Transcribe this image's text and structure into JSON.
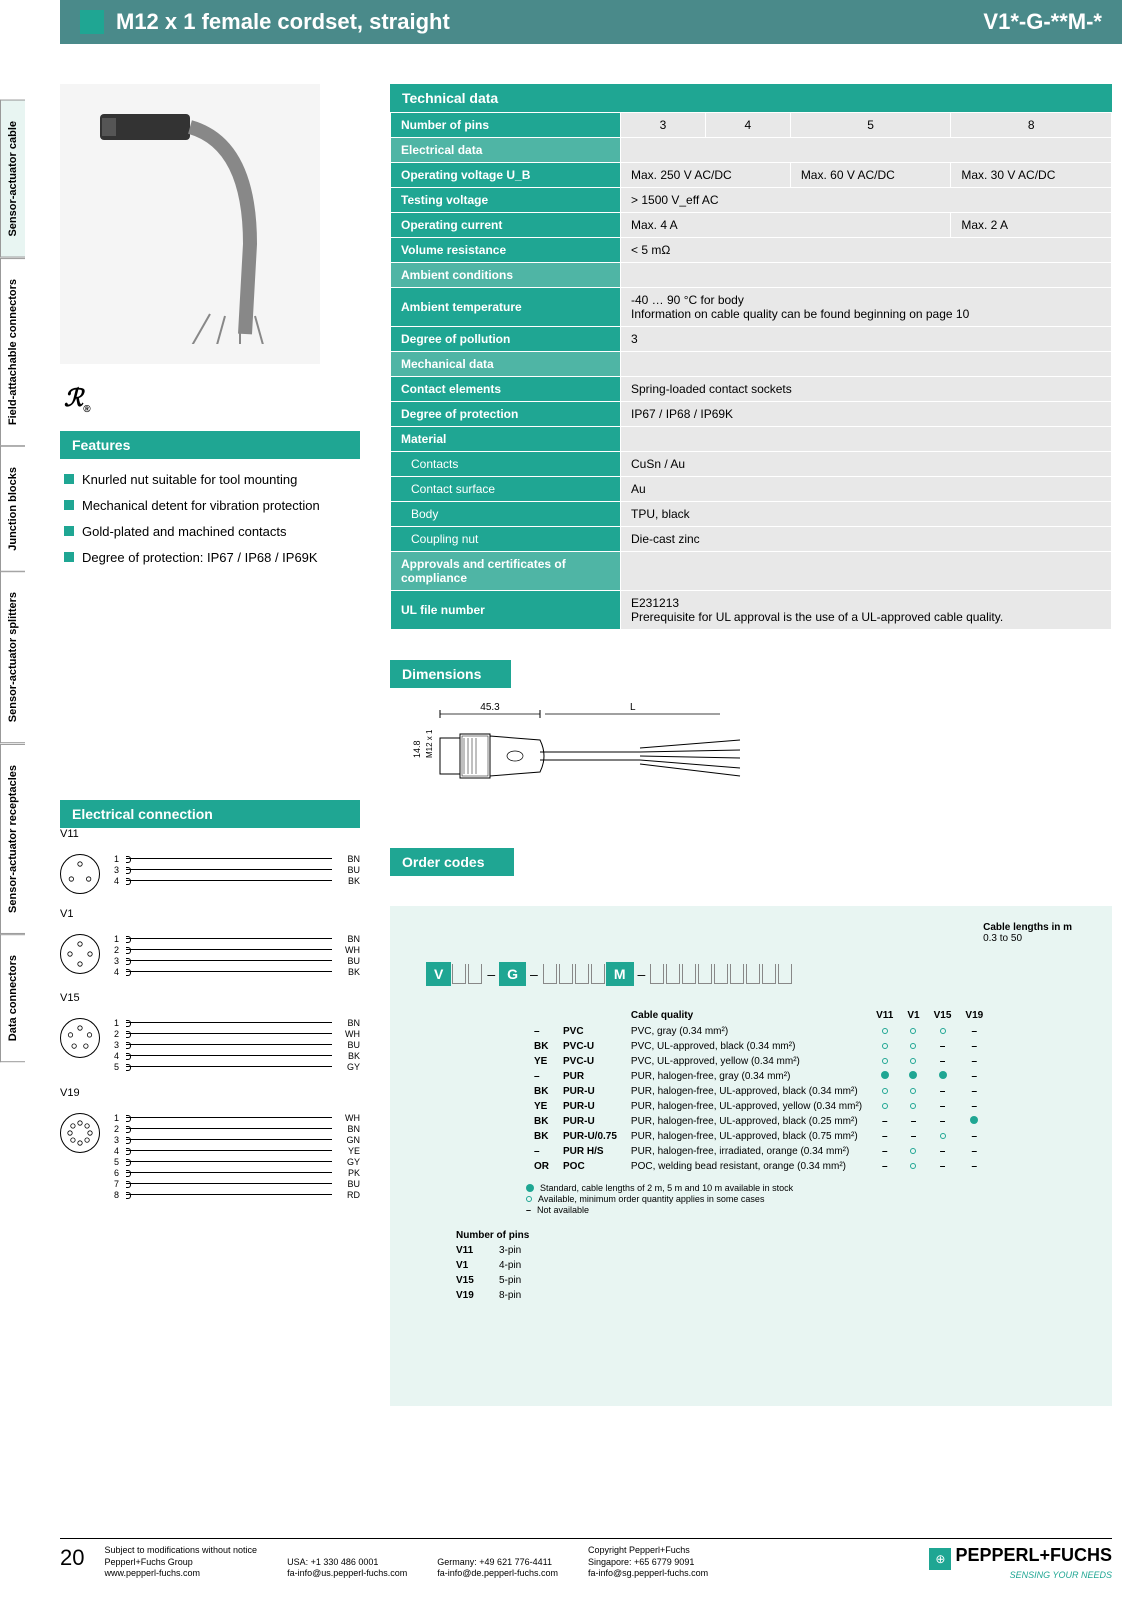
{
  "header": {
    "title": "M12 x 1 female cordset, straight",
    "code": "V1*-G-**M-*"
  },
  "side_tabs": [
    "Sensor-actuator cable",
    "Field-attachable connectors",
    "Junction blocks",
    "Sensor-actuator splitters",
    "Sensor-actuator receptacles",
    "Data connectors"
  ],
  "ul_mark": "RU®",
  "features": {
    "heading": "Features",
    "items": [
      "Knurled nut suitable for tool mounting",
      "Mechanical detent for vibration protection",
      "Gold-plated and machined contacts",
      "Degree of protection: IP67 / IP68 / IP69K"
    ]
  },
  "tech": {
    "heading": "Technical data",
    "pins_label": "Number of pins",
    "pins": [
      "3",
      "4",
      "5",
      "8"
    ],
    "sections": {
      "electrical": "Electrical data",
      "ambient": "Ambient conditions",
      "mechanical": "Mechanical data",
      "material": "Material",
      "approvals": "Approvals and certificates of compliance"
    },
    "rows": {
      "voltage_label": "Operating voltage U_B",
      "voltage_34": "Max. 250 V AC/DC",
      "voltage_5": "Max. 60 V AC/DC",
      "voltage_8": "Max. 30 V AC/DC",
      "testing_label": "Testing voltage",
      "testing_val": "> 1500 V_eff AC",
      "current_label": "Operating current",
      "current_345": "Max. 4 A",
      "current_8": "Max. 2 A",
      "resistance_label": "Volume resistance",
      "resistance_val": "< 5 mΩ",
      "temp_label": "Ambient temperature",
      "temp_val": "-40 … 90 °C for body\nInformation on cable quality can be found beginning on page 10",
      "pollution_label": "Degree of pollution",
      "pollution_val": "3",
      "contact_label": "Contact elements",
      "contact_val": "Spring-loaded contact sockets",
      "protection_label": "Degree of protection",
      "protection_val": "IP67 / IP68 / IP69K",
      "contacts_label": "Contacts",
      "contacts_val": "CuSn / Au",
      "surface_label": "Contact surface",
      "surface_val": "Au",
      "body_label": "Body",
      "body_val": "TPU, black",
      "nut_label": "Coupling nut",
      "nut_val": "Die-cast zinc",
      "ul_label": "UL file number",
      "ul_val": "E231213\nPrerequisite for UL approval is the use of a UL-approved cable quality."
    }
  },
  "dimensions": {
    "heading": "Dimensions",
    "w": "45.3",
    "l": "L",
    "h": "14.8",
    "thread": "M12 x 1"
  },
  "elec_conn": {
    "heading": "Electrical connection",
    "groups": [
      {
        "label": "V11",
        "pins": [
          {
            "n": "1",
            "c": "BN"
          },
          {
            "n": "3",
            "c": "BU"
          },
          {
            "n": "4",
            "c": "BK"
          }
        ]
      },
      {
        "label": "V1",
        "pins": [
          {
            "n": "1",
            "c": "BN"
          },
          {
            "n": "2",
            "c": "WH"
          },
          {
            "n": "3",
            "c": "BU"
          },
          {
            "n": "4",
            "c": "BK"
          }
        ]
      },
      {
        "label": "V15",
        "pins": [
          {
            "n": "1",
            "c": "BN"
          },
          {
            "n": "2",
            "c": "WH"
          },
          {
            "n": "3",
            "c": "BU"
          },
          {
            "n": "4",
            "c": "BK"
          },
          {
            "n": "5",
            "c": "GY"
          }
        ]
      },
      {
        "label": "V19",
        "pins": [
          {
            "n": "1",
            "c": "WH"
          },
          {
            "n": "2",
            "c": "BN"
          },
          {
            "n": "3",
            "c": "GN"
          },
          {
            "n": "4",
            "c": "YE"
          },
          {
            "n": "5",
            "c": "GY"
          },
          {
            "n": "6",
            "c": "PK"
          },
          {
            "n": "7",
            "c": "BU"
          },
          {
            "n": "8",
            "c": "RD"
          }
        ]
      }
    ]
  },
  "order": {
    "heading": "Order codes",
    "cable_lengths_label": "Cable lengths in m",
    "cable_lengths_val": "0.3 to 50",
    "code_parts": [
      "V",
      "G",
      "M"
    ],
    "quality_heading": "Cable quality",
    "avail_cols": [
      "V11",
      "V1",
      "V15",
      "V19"
    ],
    "quality_rows": [
      {
        "code": "–",
        "name": "PVC",
        "desc": "PVC, gray (0.34 mm²)",
        "a": [
          "o",
          "o",
          "o",
          "–"
        ]
      },
      {
        "code": "BK",
        "name": "PVC-U",
        "desc": "PVC, UL-approved, black (0.34 mm²)",
        "a": [
          "o",
          "o",
          "–",
          "–"
        ]
      },
      {
        "code": "YE",
        "name": "PVC-U",
        "desc": "PVC, UL-approved, yellow (0.34 mm²)",
        "a": [
          "o",
          "o",
          "–",
          "–"
        ]
      },
      {
        "code": "–",
        "name": "PUR",
        "desc": "PUR, halogen-free, gray (0.34 mm²)",
        "a": [
          "s",
          "s",
          "s",
          "–"
        ]
      },
      {
        "code": "BK",
        "name": "PUR-U",
        "desc": "PUR, halogen-free, UL-approved, black (0.34 mm²)",
        "a": [
          "o",
          "o",
          "–",
          "–"
        ]
      },
      {
        "code": "YE",
        "name": "PUR-U",
        "desc": "PUR, halogen-free, UL-approved, yellow (0.34 mm²)",
        "a": [
          "o",
          "o",
          "–",
          "–"
        ]
      },
      {
        "code": "BK",
        "name": "PUR-U",
        "desc": "PUR, halogen-free, UL-approved, black (0.25 mm²)",
        "a": [
          "–",
          "–",
          "–",
          "s"
        ]
      },
      {
        "code": "BK",
        "name": "PUR-U/0.75",
        "desc": "PUR, halogen-free, UL-approved, black (0.75 mm²)",
        "a": [
          "–",
          "–",
          "o",
          "–"
        ]
      },
      {
        "code": "–",
        "name": "PUR H/S",
        "desc": "PUR, halogen-free, irradiated, orange (0.34 mm²)",
        "a": [
          "–",
          "o",
          "–",
          "–"
        ]
      },
      {
        "code": "OR",
        "name": "POC",
        "desc": "POC, welding bead resistant, orange (0.34 mm²)",
        "a": [
          "–",
          "o",
          "–",
          "–"
        ]
      }
    ],
    "legend": [
      {
        "sym": "s",
        "txt": "Standard, cable lengths of 2 m, 5 m and 10 m available in stock"
      },
      {
        "sym": "o",
        "txt": "Available, minimum order quantity applies in some cases"
      },
      {
        "sym": "–",
        "txt": "Not available"
      }
    ],
    "pins_heading": "Number of pins",
    "pins": [
      {
        "code": "V11",
        "desc": "3-pin"
      },
      {
        "code": "V1",
        "desc": "4-pin"
      },
      {
        "code": "V15",
        "desc": "5-pin"
      },
      {
        "code": "V19",
        "desc": "8-pin"
      }
    ]
  },
  "footer": {
    "page": "20",
    "notice": "Subject to modifications without notice",
    "copyright": "Copyright Pepperl+Fuchs",
    "group": "Pepperl+Fuchs Group",
    "web": "www.pepperl-fuchs.com",
    "usa_tel": "USA: +1 330 486 0001",
    "usa_mail": "fa-info@us.pepperl-fuchs.com",
    "de_tel": "Germany: +49 621 776-4411",
    "de_mail": "fa-info@de.pepperl-fuchs.com",
    "sg_tel": "Singapore: +65 6779 9091",
    "sg_mail": "fa-info@sg.pepperl-fuchs.com",
    "logo": "PEPPERL+FUCHS",
    "tagline": "SENSING YOUR NEEDS"
  },
  "colors": {
    "teal": "#1fa693",
    "teal_dark": "#4a8a8a",
    "teal_light": "#e8f5f2",
    "gray_bg": "#e8e8e8"
  }
}
